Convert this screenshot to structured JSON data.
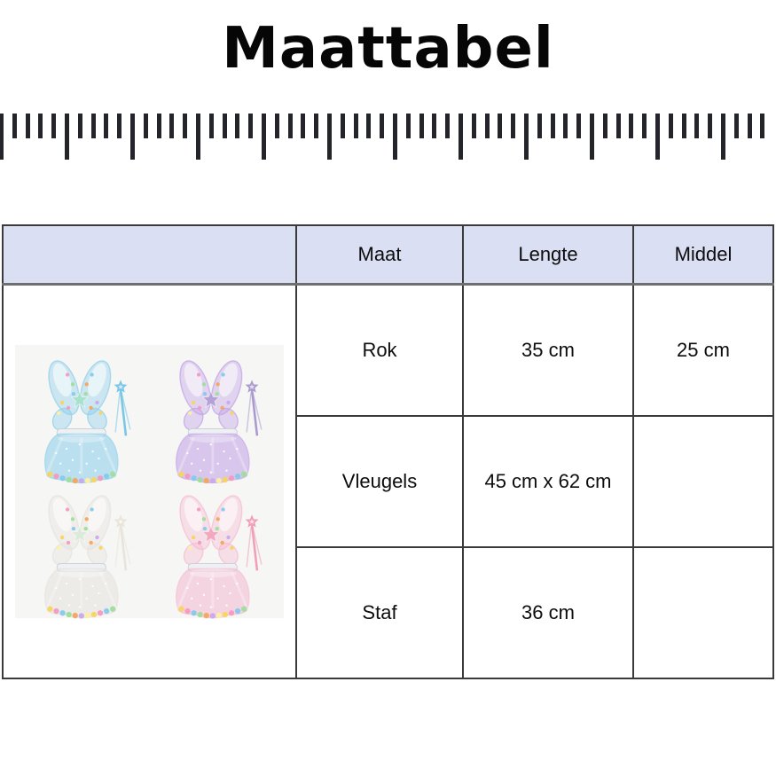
{
  "title": "Maattabel",
  "ruler": {
    "tick_count": 59,
    "long_every": 5,
    "tick_spacing_px": 14.8,
    "tick_color": "#24252b"
  },
  "table": {
    "header_bg": "#dadff3",
    "headers": {
      "image": "",
      "maat": "Maat",
      "lengte": "Lengte",
      "middel": "Middel"
    },
    "rows": [
      {
        "maat": "Rok",
        "lengte": "35 cm",
        "middel": "25 cm"
      },
      {
        "maat": "Vleugels",
        "lengte": "45 cm x 62 cm",
        "middel": ""
      },
      {
        "maat": "Staf",
        "lengte": "36 cm",
        "middel": ""
      }
    ]
  },
  "product_image": {
    "background": "#f6f6f5",
    "pom_palette": [
      "#f7d560",
      "#f49ac1",
      "#85c9ee",
      "#9ede9a",
      "#f6a45c",
      "#c9a8ec",
      "#fdf0a0"
    ],
    "waistband_color": "#eef0f4",
    "sets": [
      {
        "name": "blue-fairy-set",
        "color": "#8fd0ea",
        "star": "#a9e2cc",
        "wand": "#7ac6e6"
      },
      {
        "name": "purple-fairy-set",
        "color": "#c2a3e6",
        "star": "#b4a2d6",
        "wand": "#ab9ad0"
      },
      {
        "name": "white-fairy-set",
        "color": "#e5e3de",
        "star": "#dcead9",
        "wand": "#e8e4d9"
      },
      {
        "name": "pink-fairy-set",
        "color": "#f5bcd2",
        "star": "#f2a9c0",
        "wand": "#f09fb8"
      }
    ]
  }
}
